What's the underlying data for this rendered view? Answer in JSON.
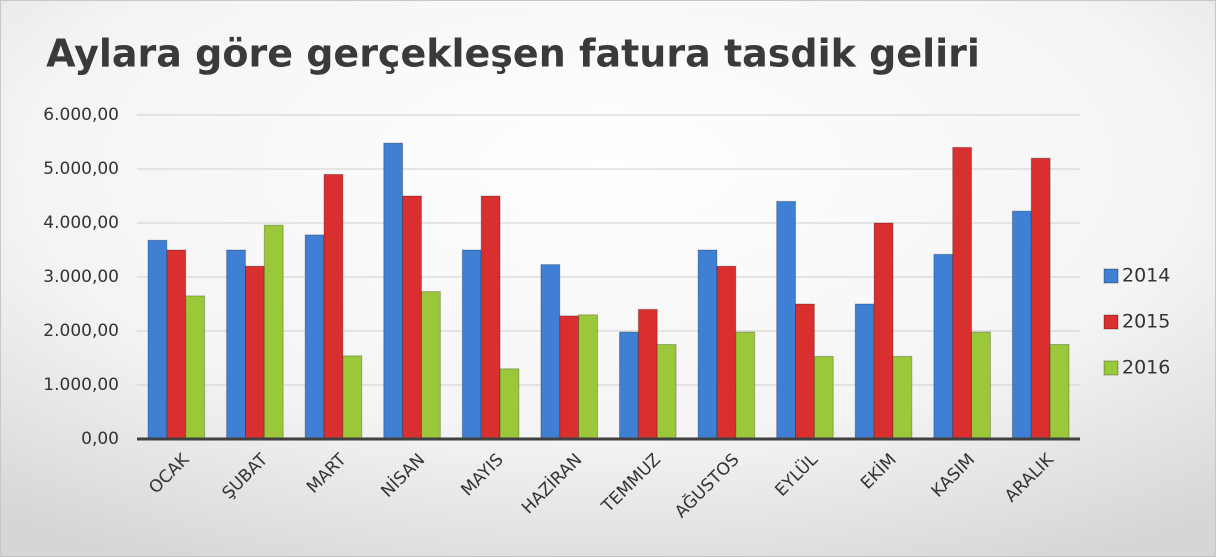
{
  "chart_data": {
    "type": "bar",
    "title": "Aylara göre gerçekleşen fatura tasdik geliri",
    "categories": [
      "OCAK",
      "ŞUBAT",
      "MART",
      "NİSAN",
      "MAYIS",
      "HAZİRAN",
      "TEMMUZ",
      "AĞUSTOS",
      "EYLÜL",
      "EKİM",
      "KASIM",
      "ARALIK"
    ],
    "series": [
      {
        "name": "2014",
        "color": "#3f7fd4",
        "values": [
          3680,
          3500,
          3780,
          5480,
          3500,
          3230,
          1980,
          3500,
          4400,
          2500,
          3420,
          4220
        ]
      },
      {
        "name": "2015",
        "color": "#d9302f",
        "values": [
          3500,
          3200,
          4900,
          4500,
          4500,
          2280,
          2400,
          3200,
          2500,
          4000,
          5400,
          5200
        ]
      },
      {
        "name": "2016",
        "color": "#9bc83a",
        "values": [
          2650,
          3960,
          1540,
          2730,
          1300,
          2300,
          1750,
          1980,
          1530,
          1530,
          1980,
          1750
        ]
      }
    ],
    "ylim": [
      0,
      6000
    ],
    "yticks": [
      {
        "value": 0,
        "label": "0,00"
      },
      {
        "value": 1000,
        "label": "1.000,00"
      },
      {
        "value": 2000,
        "label": "2.000,00"
      },
      {
        "value": 3000,
        "label": "3.000,00"
      },
      {
        "value": 4000,
        "label": "4.000,00"
      },
      {
        "value": 5000,
        "label": "5.000,00"
      },
      {
        "value": 6000,
        "label": "6.000,00"
      }
    ],
    "grid": true,
    "legend": "right"
  }
}
